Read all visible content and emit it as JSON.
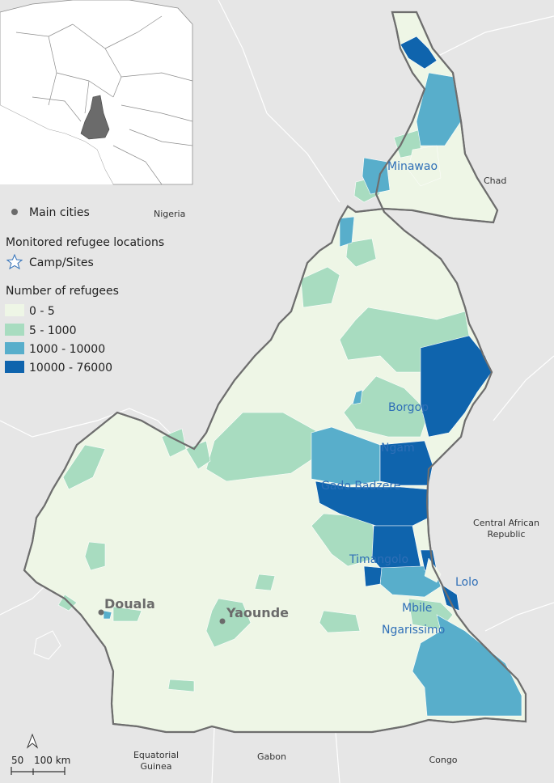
{
  "legend": {
    "main_cities": "Main cities",
    "monitored_title": "Monitored refugee locations",
    "camp_sites": "Camp/Sites",
    "refugees_title": "Number of refugees",
    "classes": [
      {
        "label": "0 - 5",
        "color": "#eef6e6"
      },
      {
        "label": "5 - 1000",
        "color": "#a8dcc0"
      },
      {
        "label": "1000 - 10000",
        "color": "#58aecb"
      },
      {
        "label": "10000 - 76000",
        "color": "#0f64ad"
      }
    ]
  },
  "countries": {
    "chad": "Chad",
    "nigeria": "Nigeria",
    "car_line1": "Central African",
    "car_line2": "Republic",
    "eq_line1": "Equatorial",
    "eq_line2": "Guinea",
    "gabon": "Gabon",
    "congo": "Congo"
  },
  "sites": {
    "minawao": "Minawao",
    "borgop": "Borgop",
    "ngam": "Ngam",
    "gado": "Gado Badzere",
    "timangolo": "Timangolo",
    "lolo": "Lolo",
    "mbile": "Mbile",
    "ngarissimo": "Ngarissimo"
  },
  "cities": {
    "douala": "Douala",
    "yaounde": "Yaounde"
  },
  "scale": {
    "label_50": "50",
    "label_100": "100 km"
  },
  "colors": {
    "background": "#e6e6e6",
    "border": "#6e6e6e",
    "site_text": "#2f6fb7",
    "city_text": "#6b6b6b"
  }
}
